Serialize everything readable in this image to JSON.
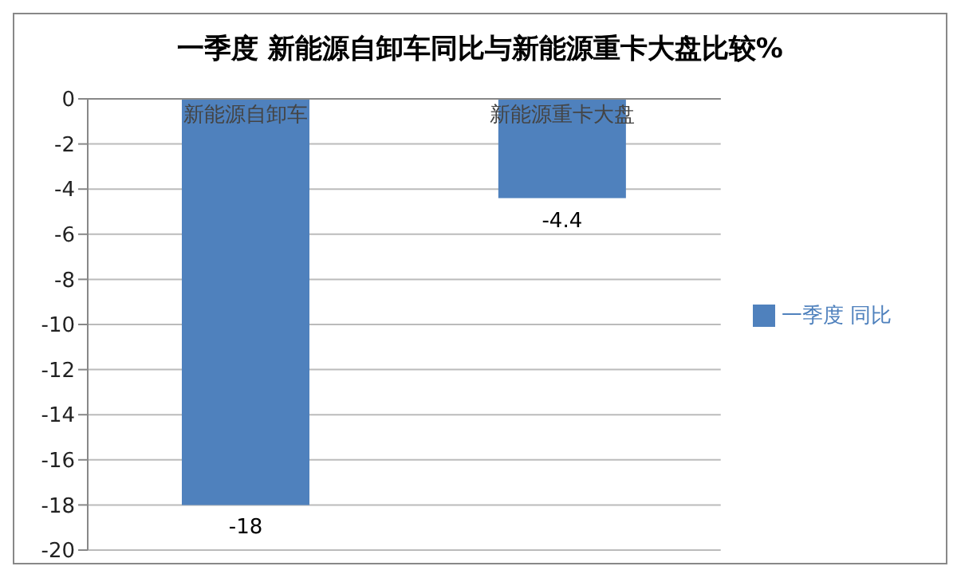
{
  "chart_data": {
    "type": "bar",
    "title": "一季度 新能源自卸车同比与新能源重卡大盘比较%",
    "categories": [
      "新能源自卸车",
      "新能源重卡大盘"
    ],
    "series": [
      {
        "name": "一季度 同比",
        "color": "#4f81bd",
        "values": [
          -18,
          -4.4
        ]
      }
    ],
    "ylim": [
      -20,
      0
    ],
    "yticks": [
      0,
      -2,
      -4,
      -6,
      -8,
      -10,
      -12,
      -14,
      -16,
      -18,
      -20
    ],
    "grid": "y",
    "legend": "right",
    "data_labels": true
  }
}
